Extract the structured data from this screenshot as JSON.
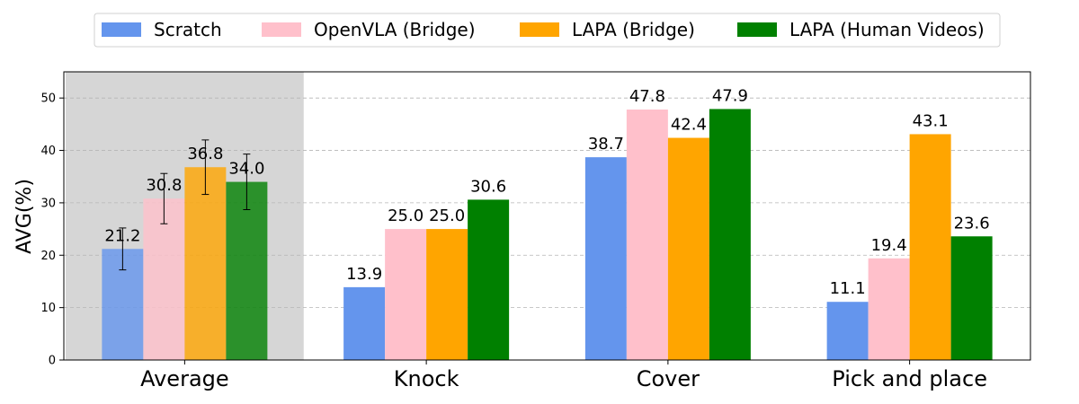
{
  "chart_data": {
    "type": "bar",
    "ylabel": "AVG(%)",
    "xlabel": "",
    "ylim": [
      0,
      55
    ],
    "yticks": [
      0,
      10,
      20,
      30,
      40,
      50
    ],
    "grid": true,
    "legend_position": "top",
    "highlighted_category": "Average",
    "categories": [
      "Average",
      "Knock",
      "Cover",
      "Pick and place"
    ],
    "series": [
      {
        "name": "Scratch",
        "color": "#6495ED",
        "values": [
          21.2,
          13.9,
          38.7,
          11.1
        ],
        "labels": [
          "21.2",
          "13.9",
          "38.7",
          "11.1"
        ],
        "error": [
          4.0,
          null,
          null,
          null
        ]
      },
      {
        "name": "OpenVLA (Bridge)",
        "color": "#FFC0CB",
        "values": [
          30.8,
          25.0,
          47.8,
          19.4
        ],
        "labels": [
          "30.8",
          "25.0",
          "47.8",
          "19.4"
        ],
        "error": [
          4.8,
          null,
          null,
          null
        ]
      },
      {
        "name": "LAPA (Bridge)",
        "color": "#FFA500",
        "values": [
          36.8,
          25.0,
          42.4,
          43.1
        ],
        "labels": [
          "36.8",
          "25.0",
          "42.4",
          "43.1"
        ],
        "error": [
          5.2,
          null,
          null,
          null
        ]
      },
      {
        "name": "LAPA (Human Videos)",
        "color": "#008000",
        "values": [
          34.0,
          30.6,
          47.9,
          23.6
        ],
        "labels": [
          "34.0",
          "30.6",
          "47.9",
          "23.6"
        ],
        "error": [
          5.3,
          null,
          null,
          null
        ]
      }
    ]
  }
}
